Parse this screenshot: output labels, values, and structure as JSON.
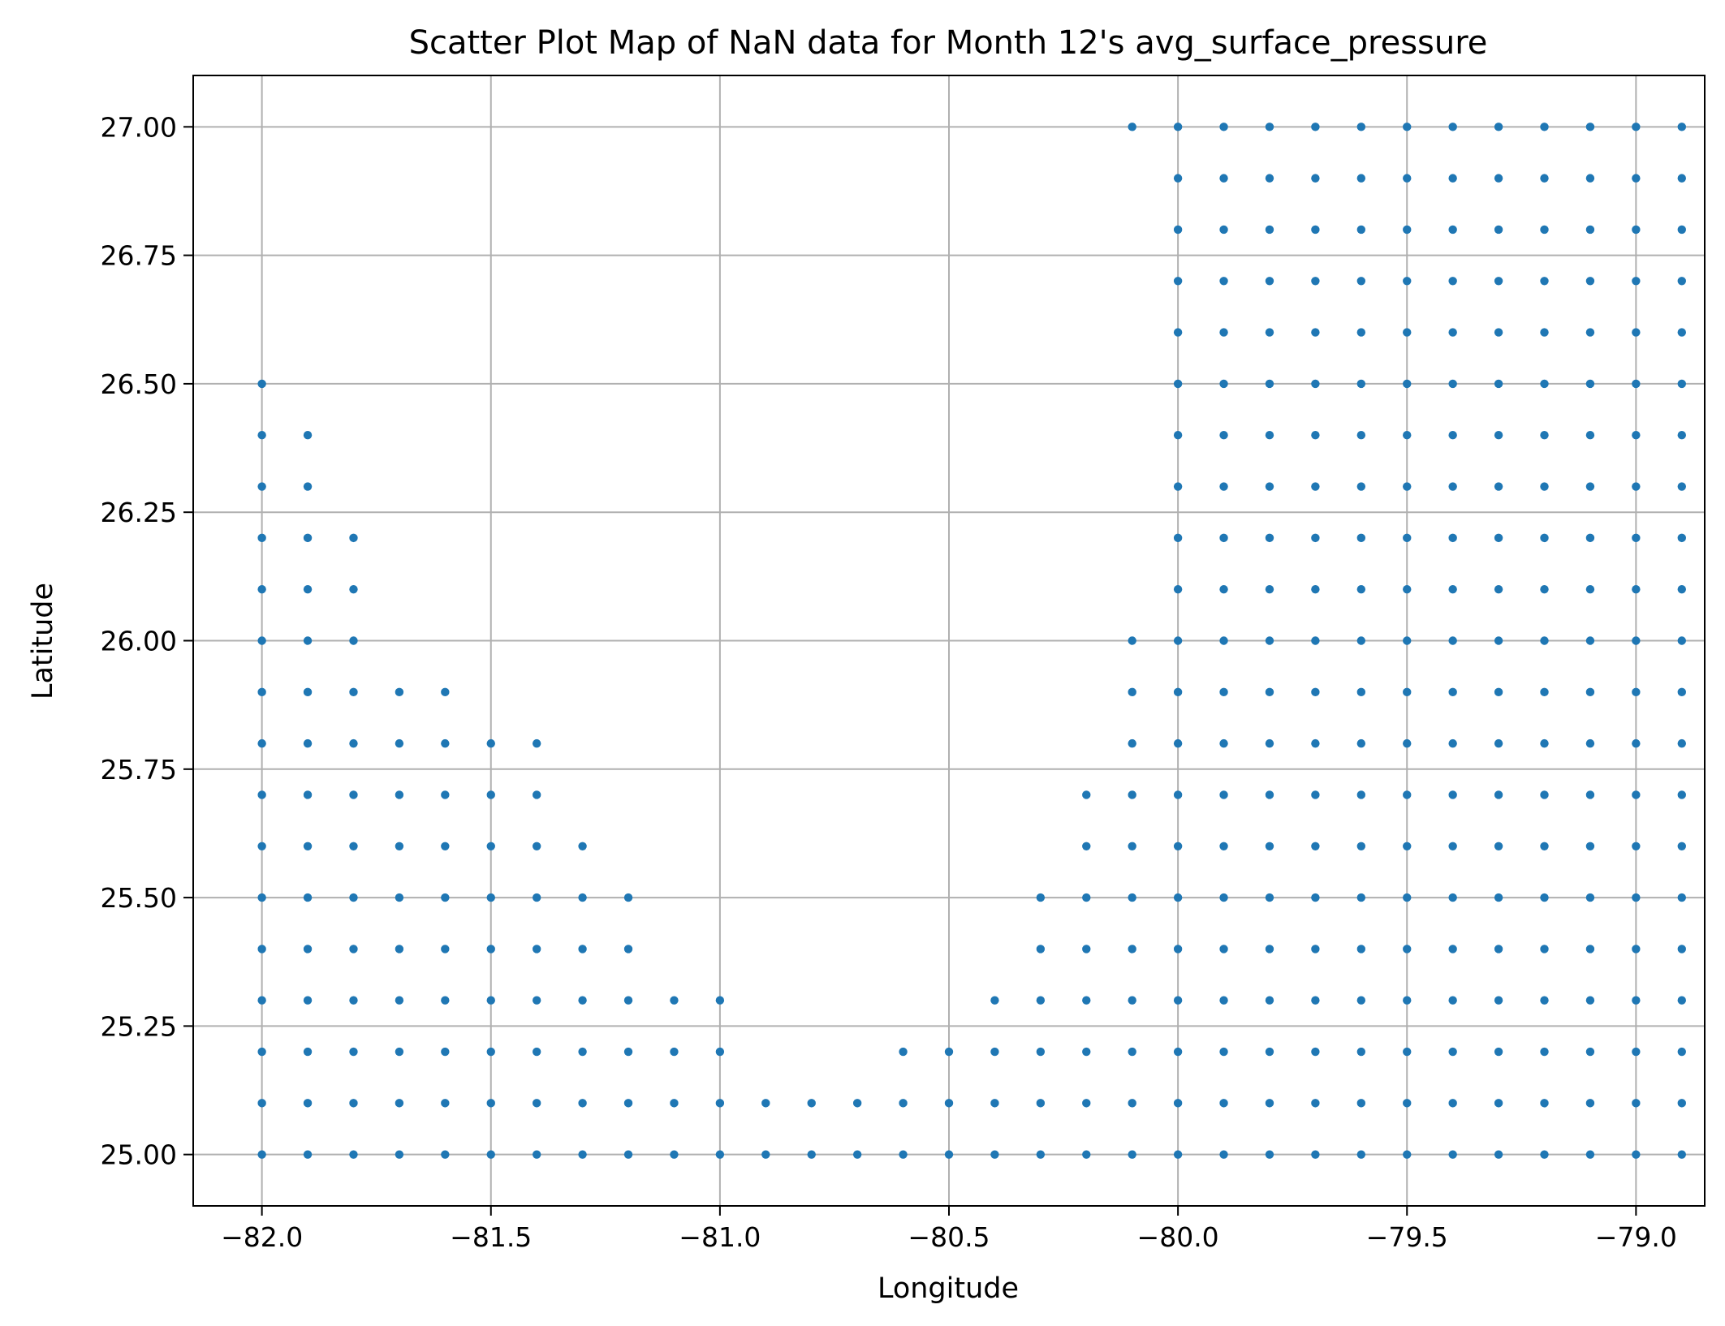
{
  "chart_data": {
    "type": "scatter",
    "title": "Scatter Plot Map of NaN data for Month 12's avg_surface_pressure",
    "xlabel": "Longitude",
    "ylabel": "Latitude",
    "xlim": [
      -82.15,
      -78.85
    ],
    "ylim": [
      24.9,
      27.1
    ],
    "grid": true,
    "x_ticks": [
      -82.0,
      -81.5,
      -81.0,
      -80.5,
      -80.0,
      -79.5,
      -79.0
    ],
    "x_tick_labels": [
      "−82.0",
      "−81.5",
      "−81.0",
      "−80.5",
      "−80.0",
      "−79.5",
      "−79.0"
    ],
    "y_ticks": [
      25.0,
      25.25,
      25.5,
      25.75,
      26.0,
      26.25,
      26.5,
      26.75,
      27.0
    ],
    "y_tick_labels": [
      "25.00",
      "25.25",
      "25.50",
      "25.75",
      "26.00",
      "26.25",
      "26.50",
      "26.75",
      "27.00"
    ],
    "marker_color": "#1f77b4",
    "point_grid": {
      "lon_start": -82.0,
      "lon_step": 0.1,
      "lat_start": 25.0,
      "lat_step": 0.1,
      "columns": [
        [
          0,
          15
        ],
        [
          0,
          14
        ],
        [
          0,
          12
        ],
        [
          0,
          9
        ],
        [
          0,
          9
        ],
        [
          0,
          8
        ],
        [
          0,
          8
        ],
        [
          0,
          6
        ],
        [
          0,
          5
        ],
        [
          0,
          3
        ],
        [
          0,
          3
        ],
        [
          0,
          1
        ],
        [
          0,
          1
        ],
        [
          0,
          1
        ],
        [
          0,
          2
        ],
        [
          0,
          2
        ],
        [
          0,
          3
        ],
        [
          0,
          5
        ],
        [
          0,
          7
        ],
        [
          0,
          10,
          20,
          20
        ],
        [
          0,
          20
        ],
        [
          0,
          20
        ],
        [
          0,
          20
        ],
        [
          0,
          20
        ],
        [
          0,
          20
        ],
        [
          0,
          20
        ],
        [
          0,
          20
        ],
        [
          0,
          20
        ],
        [
          0,
          20
        ],
        [
          0,
          20
        ],
        [
          0,
          20
        ],
        [
          0,
          20
        ]
      ]
    }
  }
}
